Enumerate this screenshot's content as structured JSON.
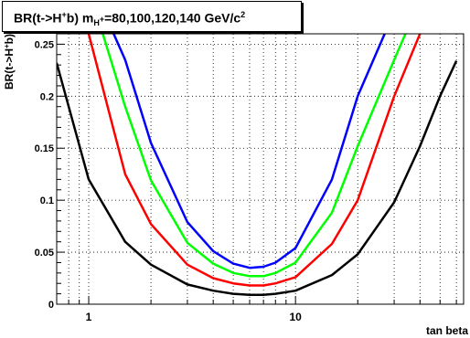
{
  "chart_data": {
    "type": "line",
    "title_parts": {
      "prefix": "BR(t->H",
      "sup1": "+",
      "mid": "b) m",
      "sub": "H",
      "sub_sup": "+",
      "values": "=80,100,120,140 GeV/c",
      "sup2": "2"
    },
    "xlabel": "tan beta",
    "ylabel": "BR(t->H+b)",
    "x_scale": "log",
    "xlim": [
      0.7,
      65
    ],
    "ylim": [
      0,
      0.26
    ],
    "x_tick_labels": [
      {
        "value": 1,
        "label": "1"
      },
      {
        "value": 10,
        "label": "10"
      }
    ],
    "y_ticks": [
      {
        "value": 0,
        "label": "0"
      },
      {
        "value": 0.05,
        "label": "0.05"
      },
      {
        "value": 0.1,
        "label": "0.1"
      },
      {
        "value": 0.15,
        "label": "0.15"
      },
      {
        "value": 0.2,
        "label": "0.2"
      },
      {
        "value": 0.25,
        "label": "0.25"
      }
    ],
    "grid": true,
    "series": [
      {
        "color": "#000000",
        "x": [
          0.7,
          1,
          1.5,
          2,
          3,
          4,
          5,
          6,
          6.5,
          7,
          8,
          10,
          15,
          20,
          30,
          40,
          50,
          60
        ],
        "y": [
          0.232,
          0.12,
          0.06,
          0.038,
          0.019,
          0.013,
          0.01,
          0.009,
          0.009,
          0.009,
          0.01,
          0.013,
          0.028,
          0.048,
          0.098,
          0.152,
          0.2,
          0.234
        ]
      },
      {
        "color": "#ff0000",
        "x": [
          1,
          1.5,
          2,
          3,
          4,
          5,
          6,
          7,
          8,
          10,
          15,
          20,
          30,
          40
        ],
        "y": [
          0.26,
          0.125,
          0.077,
          0.038,
          0.025,
          0.02,
          0.018,
          0.018,
          0.02,
          0.026,
          0.058,
          0.1,
          0.2,
          0.26
        ]
      },
      {
        "color": "#00ff00",
        "x": [
          1.17,
          1.5,
          2,
          3,
          4,
          5,
          6,
          7,
          8,
          10,
          15,
          20,
          30,
          34
        ],
        "y": [
          0.26,
          0.19,
          0.119,
          0.059,
          0.039,
          0.03,
          0.027,
          0.027,
          0.03,
          0.04,
          0.088,
          0.152,
          0.235,
          0.26
        ]
      },
      {
        "color": "#0000ff",
        "x": [
          1.32,
          1.5,
          2,
          3,
          4,
          5,
          6,
          7,
          8,
          10,
          15,
          20,
          27
        ],
        "y": [
          0.26,
          0.235,
          0.155,
          0.079,
          0.051,
          0.039,
          0.035,
          0.036,
          0.04,
          0.054,
          0.12,
          0.2,
          0.26
        ]
      }
    ]
  }
}
